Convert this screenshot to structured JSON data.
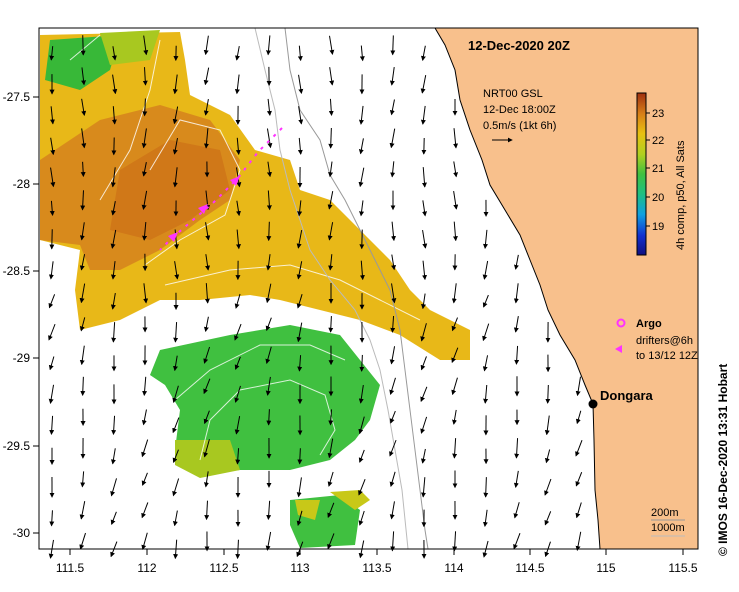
{
  "map": {
    "title": "12-Dec-2020 20Z",
    "colors": {
      "land": "#f8c08c",
      "coast": "#000000",
      "bathymetry_200m": "#999999",
      "bathymetry_1000m": "#bbbbbb",
      "sst_orange": "#d89018",
      "sst_yellow": "#e8c010",
      "sst_green": "#40c040",
      "argo": "#ff33ff",
      "drifter": "#ff33ff",
      "contour": "#ffffff"
    },
    "lon_ticks": [
      "111.5",
      "112",
      "112.5",
      "113",
      "113.5",
      "114",
      "114.5",
      "115",
      "115.5"
    ],
    "lat_ticks": [
      "-27.5",
      "-28",
      "-28.5",
      "-29",
      "-29.5",
      "-30"
    ],
    "current_info": {
      "line1": "NRT00 GSL",
      "line2": "12-Dec 18:00Z",
      "line3": "0.5m/s (1kt 6h)"
    },
    "colorbar": {
      "label": "4h comp, p50, All Sats",
      "ticks": [
        "23",
        "22",
        "21",
        "20",
        "19"
      ]
    },
    "legend": {
      "argo": "Argo",
      "drifters_line1": "drifters@6h",
      "drifters_line2": "to 13/12 12Z"
    },
    "place": "Dongara",
    "bathymetry_legend": {
      "line1": "200m",
      "line2": "1000m"
    },
    "credit": "© IMOS 16-Dec-2020 13:31 Hobart"
  }
}
